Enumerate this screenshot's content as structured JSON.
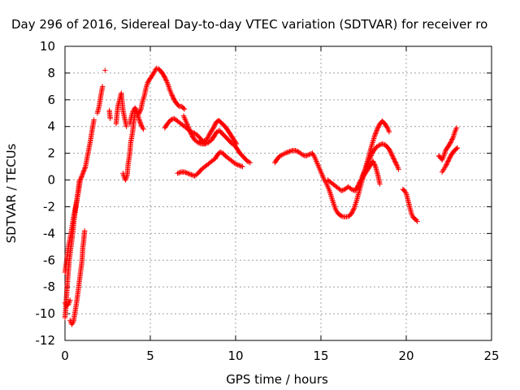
{
  "chart_data": {
    "type": "scatter",
    "title": "Day 296 of 2016, Sidereal Day-to-day VTEC variation (SDTVAR) for receiver ro",
    "xlabel": "GPS time / hours",
    "ylabel": "SDTVAR / TECUs",
    "xlim": [
      0,
      25
    ],
    "ylim": [
      -12,
      10
    ],
    "x_ticks": [
      0,
      5,
      10,
      15,
      20,
      25
    ],
    "y_ticks": [
      -12,
      -10,
      -8,
      -6,
      -4,
      -2,
      0,
      2,
      4,
      6,
      8,
      10
    ],
    "grid": true,
    "marker": "plus",
    "marker_color": "#ff0000",
    "tracks": [
      [
        [
          0.0,
          -10.3
        ],
        [
          0.05,
          -9.5
        ],
        [
          0.15,
          -7.5
        ],
        [
          0.25,
          -6.0
        ],
        [
          0.35,
          -5.0
        ],
        [
          0.45,
          -4.0
        ],
        [
          0.55,
          -2.8
        ],
        [
          0.7,
          -1.5
        ],
        [
          0.8,
          -0.5
        ],
        [
          0.85,
          0.0
        ]
      ],
      [
        [
          0.0,
          -6.9
        ],
        [
          0.1,
          -6.0
        ],
        [
          0.2,
          -5.0
        ],
        [
          0.35,
          -4.0
        ],
        [
          0.5,
          -2.8
        ],
        [
          0.65,
          -1.8
        ],
        [
          0.8,
          -0.8
        ],
        [
          0.9,
          0.0
        ],
        [
          1.05,
          0.5
        ],
        [
          1.2,
          1.0
        ],
        [
          1.35,
          2.0
        ],
        [
          1.5,
          3.0
        ],
        [
          1.6,
          3.8
        ],
        [
          1.7,
          4.5
        ]
      ],
      [
        [
          0.0,
          -9.2
        ],
        [
          0.1,
          -9.4
        ],
        [
          0.2,
          -9.3
        ],
        [
          0.3,
          -9.0
        ]
      ],
      [
        [
          0.3,
          -10.5
        ],
        [
          0.4,
          -10.8
        ],
        [
          0.5,
          -10.6
        ],
        [
          0.6,
          -9.8
        ],
        [
          0.7,
          -9.0
        ],
        [
          0.8,
          -8.0
        ],
        [
          0.9,
          -7.0
        ],
        [
          1.0,
          -6.0
        ],
        [
          1.05,
          -5.0
        ],
        [
          1.1,
          -4.5
        ],
        [
          1.15,
          -3.8
        ]
      ],
      [
        [
          1.9,
          5.0
        ],
        [
          2.0,
          5.5
        ],
        [
          2.1,
          6.3
        ],
        [
          2.2,
          7.0
        ]
      ],
      [
        [
          2.35,
          8.2
        ]
      ],
      [
        [
          2.6,
          5.2
        ],
        [
          2.65,
          4.6
        ]
      ],
      [
        [
          3.0,
          4.2
        ],
        [
          3.05,
          5.0
        ],
        [
          3.1,
          5.5
        ],
        [
          3.2,
          6.0
        ],
        [
          3.3,
          6.5
        ],
        [
          3.4,
          5.2
        ],
        [
          3.5,
          4.6
        ],
        [
          3.6,
          4.0
        ]
      ],
      [
        [
          3.4,
          0.5
        ],
        [
          3.45,
          0.3
        ],
        [
          3.5,
          0.1
        ],
        [
          3.55,
          0.0
        ],
        [
          3.65,
          0.4
        ],
        [
          3.7,
          1.2
        ],
        [
          3.8,
          2.0
        ],
        [
          3.85,
          2.8
        ],
        [
          3.95,
          3.5
        ],
        [
          4.0,
          4.0
        ],
        [
          4.05,
          4.5
        ],
        [
          4.1,
          5.0
        ],
        [
          4.15,
          5.3
        ],
        [
          4.2,
          5.1
        ],
        [
          4.25,
          4.8
        ]
      ],
      [
        [
          3.8,
          4.2
        ],
        [
          3.9,
          4.8
        ],
        [
          4.0,
          5.2
        ],
        [
          4.1,
          5.4
        ],
        [
          4.2,
          5.2
        ],
        [
          4.35,
          4.5
        ],
        [
          4.5,
          4.0
        ],
        [
          4.6,
          3.8
        ]
      ],
      [
        [
          4.3,
          4.9
        ],
        [
          4.45,
          5.3
        ],
        [
          4.55,
          5.9
        ],
        [
          4.65,
          6.3
        ],
        [
          4.75,
          6.9
        ],
        [
          4.85,
          7.3
        ],
        [
          5.0,
          7.6
        ],
        [
          5.2,
          8.0
        ],
        [
          5.35,
          8.35
        ],
        [
          5.5,
          8.3
        ],
        [
          5.65,
          8.1
        ],
        [
          5.8,
          7.8
        ],
        [
          5.95,
          7.4
        ],
        [
          6.05,
          7.1
        ],
        [
          6.15,
          6.7
        ],
        [
          6.25,
          6.4
        ],
        [
          6.4,
          6.0
        ],
        [
          6.55,
          5.7
        ],
        [
          6.7,
          5.5
        ],
        [
          6.85,
          5.5
        ],
        [
          7.0,
          5.3
        ]
      ],
      [
        [
          5.85,
          3.9
        ],
        [
          6.0,
          4.2
        ],
        [
          6.2,
          4.5
        ],
        [
          6.4,
          4.6
        ],
        [
          6.6,
          4.4
        ],
        [
          6.8,
          4.2
        ],
        [
          7.0,
          4.0
        ],
        [
          7.2,
          3.8
        ],
        [
          7.4,
          3.6
        ],
        [
          7.6,
          3.5
        ],
        [
          7.8,
          3.3
        ],
        [
          8.0,
          3.0
        ],
        [
          8.2,
          2.7
        ]
      ],
      [
        [
          6.95,
          4.8
        ],
        [
          7.05,
          4.5
        ],
        [
          7.15,
          4.2
        ],
        [
          7.3,
          3.7
        ],
        [
          7.45,
          3.3
        ],
        [
          7.6,
          3.0
        ],
        [
          7.8,
          2.8
        ],
        [
          8.0,
          2.7
        ],
        [
          8.2,
          2.7
        ],
        [
          8.4,
          2.8
        ],
        [
          8.6,
          3.0
        ],
        [
          8.75,
          3.3
        ],
        [
          8.9,
          3.6
        ],
        [
          9.05,
          3.7
        ],
        [
          9.2,
          3.5
        ],
        [
          9.35,
          3.3
        ],
        [
          9.5,
          3.1
        ],
        [
          9.65,
          2.9
        ],
        [
          9.8,
          2.7
        ],
        [
          9.95,
          2.6
        ],
        [
          10.1,
          2.3
        ],
        [
          10.25,
          2.0
        ],
        [
          10.4,
          1.8
        ],
        [
          10.55,
          1.6
        ],
        [
          10.7,
          1.4
        ],
        [
          10.85,
          1.3
        ]
      ],
      [
        [
          6.6,
          0.5
        ],
        [
          6.8,
          0.6
        ],
        [
          7.0,
          0.6
        ],
        [
          7.2,
          0.5
        ],
        [
          7.4,
          0.4
        ],
        [
          7.6,
          0.3
        ],
        [
          7.8,
          0.5
        ],
        [
          8.0,
          0.8
        ],
        [
          8.2,
          1.0
        ],
        [
          8.4,
          1.2
        ],
        [
          8.6,
          1.4
        ],
        [
          8.8,
          1.6
        ],
        [
          8.95,
          1.9
        ],
        [
          9.1,
          2.1
        ],
        [
          9.25,
          2.0
        ],
        [
          9.4,
          1.8
        ],
        [
          9.6,
          1.6
        ],
        [
          9.8,
          1.4
        ],
        [
          10.0,
          1.2
        ],
        [
          10.2,
          1.1
        ],
        [
          10.4,
          1.0
        ]
      ],
      [
        [
          7.9,
          2.9
        ],
        [
          8.1,
          2.9
        ],
        [
          8.3,
          3.0
        ],
        [
          8.5,
          3.5
        ],
        [
          8.7,
          3.9
        ],
        [
          8.85,
          4.3
        ],
        [
          9.0,
          4.45
        ],
        [
          9.15,
          4.3
        ],
        [
          9.3,
          4.1
        ],
        [
          9.45,
          3.9
        ],
        [
          9.6,
          3.6
        ],
        [
          9.75,
          3.3
        ],
        [
          9.9,
          3.0
        ],
        [
          10.05,
          2.7
        ]
      ],
      [
        [
          12.3,
          1.3
        ],
        [
          12.45,
          1.6
        ],
        [
          12.6,
          1.8
        ],
        [
          12.75,
          1.9
        ],
        [
          12.9,
          2.0
        ],
        [
          13.1,
          2.1
        ],
        [
          13.3,
          2.2
        ],
        [
          13.5,
          2.2
        ],
        [
          13.7,
          2.1
        ],
        [
          13.9,
          1.9
        ],
        [
          14.1,
          1.8
        ],
        [
          14.3,
          1.9
        ],
        [
          14.5,
          2.0
        ],
        [
          14.6,
          1.8
        ],
        [
          14.7,
          1.5
        ],
        [
          14.8,
          1.2
        ],
        [
          14.9,
          0.9
        ],
        [
          15.0,
          0.6
        ],
        [
          15.1,
          0.3
        ],
        [
          15.2,
          0.0
        ],
        [
          15.3,
          -0.2
        ],
        [
          15.4,
          -0.5
        ],
        [
          15.5,
          -0.8
        ],
        [
          15.6,
          -1.2
        ],
        [
          15.7,
          -1.6
        ],
        [
          15.8,
          -2.0
        ],
        [
          15.9,
          -2.3
        ],
        [
          16.0,
          -2.5
        ],
        [
          16.1,
          -2.6
        ],
        [
          16.2,
          -2.7
        ],
        [
          16.35,
          -2.75
        ],
        [
          16.5,
          -2.75
        ],
        [
          16.65,
          -2.7
        ],
        [
          16.8,
          -2.5
        ],
        [
          16.95,
          -2.1
        ],
        [
          17.1,
          -1.5
        ],
        [
          17.25,
          -0.8
        ],
        [
          17.4,
          -0.1
        ],
        [
          17.55,
          0.6
        ],
        [
          17.7,
          1.3
        ],
        [
          17.85,
          2.0
        ],
        [
          18.0,
          2.7
        ],
        [
          18.15,
          3.3
        ],
        [
          18.3,
          3.8
        ],
        [
          18.45,
          4.2
        ],
        [
          18.6,
          4.4
        ],
        [
          18.75,
          4.2
        ],
        [
          18.9,
          3.9
        ],
        [
          19.0,
          3.6
        ]
      ],
      [
        [
          15.4,
          0.0
        ],
        [
          15.6,
          -0.2
        ],
        [
          15.8,
          -0.4
        ],
        [
          16.0,
          -0.6
        ],
        [
          16.2,
          -0.8
        ],
        [
          16.4,
          -0.7
        ],
        [
          16.6,
          -0.5
        ],
        [
          16.8,
          -0.7
        ],
        [
          17.0,
          -0.8
        ],
        [
          17.15,
          -0.5
        ],
        [
          17.3,
          -0.1
        ],
        [
          17.5,
          0.3
        ],
        [
          17.7,
          0.7
        ],
        [
          17.9,
          1.1
        ],
        [
          18.05,
          1.4
        ],
        [
          18.2,
          1.0
        ],
        [
          18.35,
          0.3
        ],
        [
          18.45,
          -0.3
        ]
      ],
      [
        [
          17.4,
          0.2
        ],
        [
          17.6,
          0.8
        ],
        [
          17.8,
          1.4
        ],
        [
          18.0,
          2.0
        ],
        [
          18.2,
          2.4
        ],
        [
          18.4,
          2.6
        ],
        [
          18.6,
          2.7
        ],
        [
          18.8,
          2.6
        ],
        [
          19.0,
          2.3
        ],
        [
          19.15,
          1.9
        ],
        [
          19.3,
          1.5
        ],
        [
          19.45,
          1.1
        ],
        [
          19.55,
          0.8
        ]
      ],
      [
        [
          19.8,
          -0.7
        ],
        [
          19.9,
          -0.8
        ],
        [
          20.0,
          -1.0
        ],
        [
          20.1,
          -1.5
        ],
        [
          20.2,
          -2.0
        ],
        [
          20.3,
          -2.5
        ],
        [
          20.4,
          -2.8
        ],
        [
          20.5,
          -2.9
        ],
        [
          20.6,
          -3.0
        ],
        [
          20.65,
          -3.1
        ]
      ],
      [
        [
          21.9,
          1.8
        ],
        [
          22.0,
          1.7
        ],
        [
          22.1,
          1.5
        ],
        [
          22.2,
          1.8
        ],
        [
          22.3,
          2.2
        ],
        [
          22.45,
          2.5
        ],
        [
          22.6,
          2.8
        ],
        [
          22.75,
          3.2
        ],
        [
          22.85,
          3.6
        ],
        [
          22.95,
          3.9
        ]
      ],
      [
        [
          22.1,
          0.6
        ],
        [
          22.2,
          0.8
        ],
        [
          22.3,
          1.0
        ],
        [
          22.45,
          1.4
        ],
        [
          22.6,
          1.8
        ],
        [
          22.75,
          2.1
        ],
        [
          22.9,
          2.3
        ],
        [
          23.0,
          2.4
        ]
      ]
    ]
  }
}
